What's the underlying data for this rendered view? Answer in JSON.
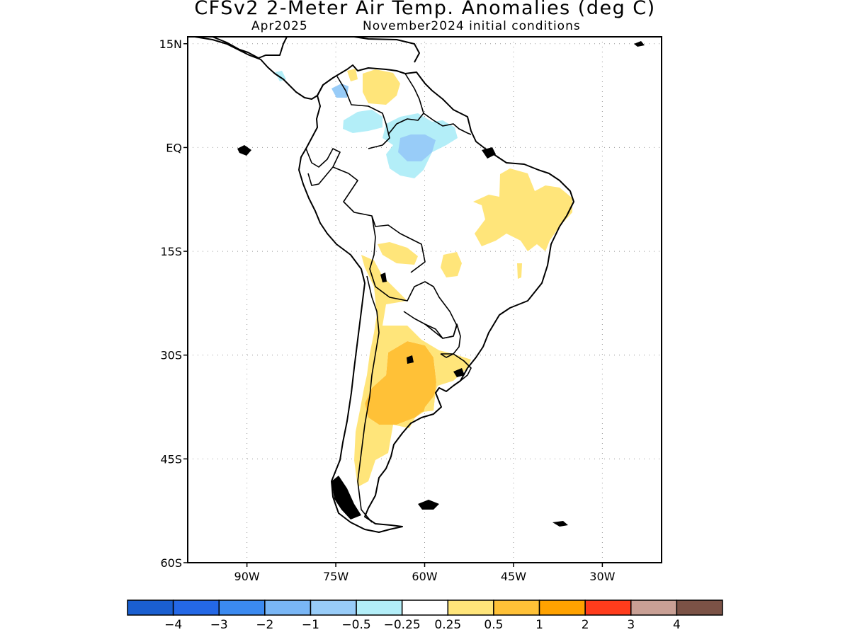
{
  "title": "CFSv2 2-Meter Air Temp. Anomalies (deg C)",
  "subtitle_left": "Apr2025",
  "subtitle_right": "November2024 initial conditions",
  "lat_ticks": [
    {
      "value": 15,
      "label": "15N"
    },
    {
      "value": 0,
      "label": "EQ"
    },
    {
      "value": -15,
      "label": "15S"
    },
    {
      "value": -30,
      "label": "30S"
    },
    {
      "value": -45,
      "label": "45S"
    },
    {
      "value": -60,
      "label": "60S"
    }
  ],
  "lon_ticks": [
    {
      "value": -90,
      "label": "90W"
    },
    {
      "value": -75,
      "label": "75W"
    },
    {
      "value": -60,
      "label": "60W"
    },
    {
      "value": -45,
      "label": "45W"
    },
    {
      "value": -30,
      "label": "30W"
    }
  ],
  "map_extent": {
    "lon_min": -100,
    "lon_max": -20,
    "lat_min": -60,
    "lat_max": 16
  },
  "colorbar": {
    "colors": [
      "#1a5fd0",
      "#2468e6",
      "#3b8af0",
      "#79b6f5",
      "#98ccf8",
      "#b3eef8",
      "#ffffff",
      "#ffe57a",
      "#ffc137",
      "#ffa200",
      "#ff3c1c",
      "#c9a095",
      "#7b5246"
    ],
    "labels": [
      "-4",
      "-3",
      "-2",
      "-1",
      "-0.5",
      "-0.25",
      "0.25",
      "0.5",
      "1",
      "2",
      "3",
      "4"
    ]
  },
  "colors": {
    "light_blue": "#b3eef8",
    "mid_blue": "#79b6f5",
    "yellow": "#ffe57a",
    "orange": "#ffc137"
  }
}
